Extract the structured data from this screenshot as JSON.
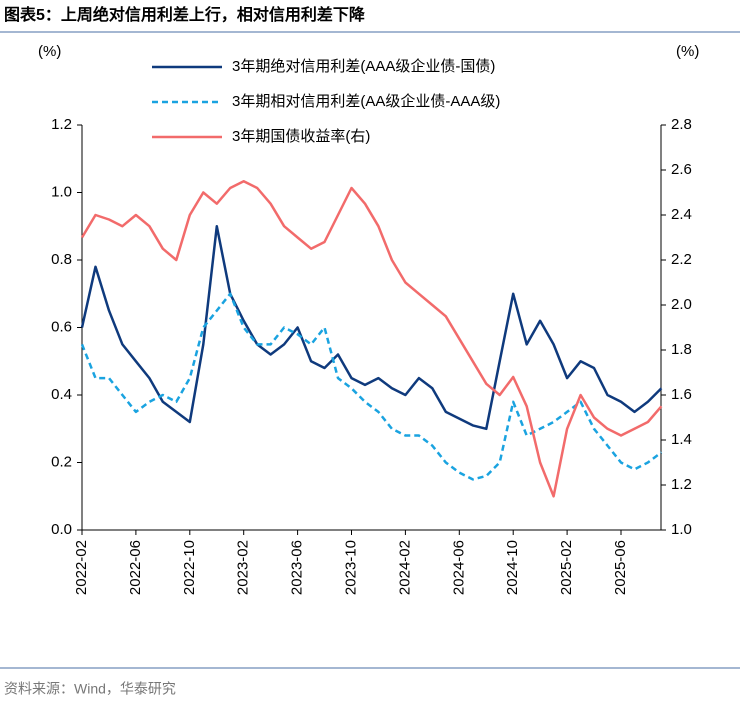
{
  "chart_data": {
    "type": "line",
    "title": "图表5：上周绝对信用利差上行，相对信用利差下降",
    "y_label": "(%)",
    "y2_label": "(%)",
    "source": "资料来源：Wind，华泰研究",
    "categories": [
      "2022-02",
      null,
      null,
      null,
      "2022-06",
      null,
      null,
      null,
      "2022-10",
      null,
      null,
      null,
      "2023-02",
      null,
      null,
      null,
      "2023-06",
      null,
      null,
      null,
      "2023-10",
      null,
      null,
      null,
      "2024-02",
      null,
      null,
      null,
      "2024-06",
      null,
      null,
      null,
      "2024-10",
      null,
      null,
      null,
      "2025-02",
      null,
      null,
      null,
      "2025-06",
      null,
      null,
      null
    ],
    "series": [
      {
        "name": "3年期绝对信用利差(AAA级企业债-国债)",
        "color": "#0f3a7d",
        "dash": false,
        "axis": "y",
        "values": [
          0.6,
          0.78,
          0.65,
          0.55,
          0.5,
          0.45,
          0.38,
          0.35,
          0.32,
          0.55,
          0.9,
          0.7,
          0.62,
          0.55,
          0.52,
          0.55,
          0.6,
          0.5,
          0.48,
          0.52,
          0.45,
          0.43,
          0.45,
          0.42,
          0.4,
          0.45,
          0.42,
          0.35,
          0.33,
          0.31,
          0.3,
          0.5,
          0.7,
          0.55,
          0.62,
          0.55,
          0.45,
          0.5,
          0.48,
          0.4,
          0.38,
          0.35,
          0.38,
          0.42
        ]
      },
      {
        "name": "3年期相对信用利差(AA级企业债-AAA级)",
        "color": "#1aa3e0",
        "dash": true,
        "axis": "y",
        "values": [
          0.55,
          0.45,
          0.45,
          0.4,
          0.35,
          0.38,
          0.4,
          0.38,
          0.45,
          0.6,
          0.65,
          0.7,
          0.6,
          0.55,
          0.55,
          0.6,
          0.58,
          0.55,
          0.6,
          0.45,
          0.42,
          0.38,
          0.35,
          0.3,
          0.28,
          0.28,
          0.25,
          0.2,
          0.17,
          0.15,
          0.16,
          0.2,
          0.38,
          0.28,
          0.3,
          0.32,
          0.35,
          0.38,
          0.3,
          0.25,
          0.2,
          0.18,
          0.2,
          0.23
        ]
      },
      {
        "name": "3年期国债收益率(右)",
        "color": "#f26b6b",
        "dash": false,
        "axis": "y2",
        "values": [
          2.3,
          2.4,
          2.38,
          2.35,
          2.4,
          2.35,
          2.25,
          2.2,
          2.4,
          2.5,
          2.45,
          2.52,
          2.55,
          2.52,
          2.45,
          2.35,
          2.3,
          2.25,
          2.28,
          2.4,
          2.52,
          2.45,
          2.35,
          2.2,
          2.1,
          2.05,
          2.0,
          1.95,
          1.85,
          1.75,
          1.65,
          1.6,
          1.68,
          1.55,
          1.3,
          1.15,
          1.45,
          1.6,
          1.5,
          1.45,
          1.42,
          1.45,
          1.48,
          1.55
        ]
      }
    ],
    "ylim": [
      0,
      1.2
    ],
    "yticks": [
      {
        "value": 0,
        "label": "0.0"
      },
      0.2,
      0.4,
      0.6,
      0.8,
      {
        "value": 1,
        "label": "1.0"
      },
      1.2
    ],
    "y2lim": [
      1,
      2.8
    ],
    "y2ticks": [
      {
        "value": 1,
        "label": "1.0"
      },
      1.2,
      1.4,
      1.6,
      1.8,
      {
        "value": 2,
        "label": "2.0"
      },
      2.2,
      2.4,
      2.6,
      2.8
    ],
    "legend": "top"
  }
}
